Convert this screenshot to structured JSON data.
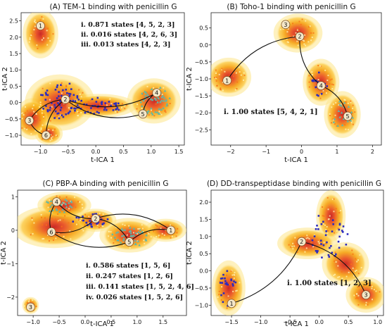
{
  "colors": {
    "blob_outer": "#fde68a",
    "blob_mid": "#f59e0b",
    "blob_inner": "#e8491d",
    "blob_core": "#c81e1e",
    "blue_points": "#2b2bbf",
    "teal_points": "#5fb8a8",
    "arrow": "#111111",
    "node_fill": "#f4e7c8"
  },
  "chart_data": [
    {
      "id": "A",
      "type": "scatter",
      "title": "(A) TEM-1 binding with penicillin G",
      "xlabel": "t-ICA 1",
      "ylabel": "t-ICA 2",
      "xlim": [
        -1.35,
        1.6
      ],
      "ylim": [
        -1.3,
        2.75
      ],
      "xticks": [
        -1.0,
        -0.5,
        0.0,
        0.5,
        1.0,
        1.5
      ],
      "xtick_labels": [
        "−1.0",
        "−0.5",
        "0.0",
        "0.5",
        "1.0",
        "1.5"
      ],
      "yticks": [
        -1.0,
        -0.5,
        0.0,
        0.5,
        1.0,
        1.5,
        2.0,
        2.5
      ],
      "ytick_labels": [
        "−1.0",
        "−0.5",
        "0.0",
        "0.5",
        "1.0",
        "1.5",
        "2.0",
        "2.5"
      ],
      "annotations": [
        "i.   0.871 states [4, 5, 2, 3]",
        "ii.  0.016 states [4, 2, 6, 3]",
        "iii. 0.013 states [4, 2, 3]"
      ],
      "states": [
        {
          "label": "1",
          "x": -1.0,
          "y": 2.35
        },
        {
          "label": "2",
          "x": -0.55,
          "y": 0.1
        },
        {
          "label": "3",
          "x": -1.2,
          "y": -0.55
        },
        {
          "label": "4",
          "x": 1.1,
          "y": 0.3
        },
        {
          "label": "5",
          "x": 0.85,
          "y": -0.35
        },
        {
          "label": "6",
          "x": -0.9,
          "y": -1.0
        }
      ],
      "transitions": [
        [
          4,
          5
        ],
        [
          5,
          2
        ],
        [
          2,
          3
        ],
        [
          4,
          2
        ],
        [
          2,
          6
        ],
        [
          6,
          3
        ]
      ],
      "densities": [
        {
          "x": -1.0,
          "y": 2.1,
          "rx": 0.28,
          "ry": 0.65
        },
        {
          "x": -0.65,
          "y": 0.0,
          "rx": 0.55,
          "ry": 0.75
        },
        {
          "x": -1.15,
          "y": -0.5,
          "rx": 0.28,
          "ry": 0.55
        },
        {
          "x": -0.85,
          "y": -0.95,
          "rx": 0.22,
          "ry": 0.3
        },
        {
          "x": 0.05,
          "y": -0.1,
          "rx": 0.6,
          "ry": 0.32
        },
        {
          "x": 1.05,
          "y": 0.05,
          "rx": 0.42,
          "ry": 0.6
        }
      ],
      "blue_regions": [
        {
          "x": -0.65,
          "y": 0.1,
          "rx": 0.35,
          "ry": 0.6,
          "n": 60
        },
        {
          "x": 0.0,
          "y": -0.1,
          "rx": 0.5,
          "ry": 0.25,
          "n": 45
        }
      ],
      "teal_regions": [
        {
          "x": 1.05,
          "y": 0.05,
          "rx": 0.3,
          "ry": 0.45,
          "n": 55
        }
      ]
    },
    {
      "id": "B",
      "type": "scatter",
      "title": "(B) Toho-1 binding with penicillin G",
      "xlabel": "t-ICA 1",
      "ylabel": "t-ICA 2",
      "xlim": [
        -2.55,
        2.25
      ],
      "ylim": [
        -2.95,
        0.95
      ],
      "xticks": [
        -2,
        -1,
        0,
        1,
        2
      ],
      "xtick_labels": [
        "−2",
        "−1",
        "0",
        "1",
        "2"
      ],
      "yticks": [
        -2.5,
        -2.0,
        -1.5,
        -1.0,
        -0.5,
        0.0,
        0.5
      ],
      "ytick_labels": [
        "−2.5",
        "−2.0",
        "−1.5",
        "−1.0",
        "−0.5",
        "0.0",
        "0.5"
      ],
      "annotations": [
        "i. 1.00 states [5, 4, 2, 1]"
      ],
      "states": [
        {
          "label": "1",
          "x": -2.1,
          "y": -1.05
        },
        {
          "label": "2",
          "x": -0.05,
          "y": 0.25
        },
        {
          "label": "3",
          "x": -0.45,
          "y": 0.6
        },
        {
          "label": "4",
          "x": 0.55,
          "y": -1.2
        },
        {
          "label": "5",
          "x": 1.3,
          "y": -2.1
        }
      ],
      "transitions": [
        [
          5,
          4
        ],
        [
          4,
          2
        ],
        [
          2,
          1
        ]
      ],
      "densities": [
        {
          "x": -2.05,
          "y": -0.95,
          "rx": 0.55,
          "ry": 0.5
        },
        {
          "x": -0.1,
          "y": 0.35,
          "rx": 0.6,
          "ry": 0.5
        },
        {
          "x": 0.55,
          "y": -1.1,
          "rx": 0.45,
          "ry": 0.6
        },
        {
          "x": 1.15,
          "y": -2.05,
          "rx": 0.45,
          "ry": 0.6
        }
      ],
      "blue_regions": [
        {
          "x": 0.5,
          "y": -1.15,
          "rx": 0.25,
          "ry": 0.35,
          "n": 18
        }
      ],
      "teal_regions": [
        {
          "x": 1.15,
          "y": -2.05,
          "rx": 0.3,
          "ry": 0.45,
          "n": 22
        }
      ]
    },
    {
      "id": "C",
      "type": "scatter",
      "title": "(C) PBP-A binding with penicillin G",
      "xlabel": "t-ICA 1",
      "ylabel": "t-ICA 2",
      "xlim": [
        -1.3,
        1.95
      ],
      "ylim": [
        -2.55,
        1.2
      ],
      "xticks": [
        -1.0,
        -0.5,
        0.0,
        0.5,
        1.0,
        1.5
      ],
      "xtick_labels": [
        "−1.0",
        "−0.5",
        "0.0",
        "0.5",
        "1.0",
        "1.5"
      ],
      "yticks": [
        -2,
        -1,
        0,
        1
      ],
      "ytick_labels": [
        "−2",
        "−1",
        "0",
        "1"
      ],
      "annotations": [
        "i.    0.586 states [1, 5, 6]",
        "ii.   0.247 states [1, 2, 6]",
        "iii.  0.141 states [1, 5, 2, 4, 6]",
        "iv.  0.026 states [1, 5, 2, 6]"
      ],
      "states": [
        {
          "label": "1",
          "x": 1.65,
          "y": 0.0
        },
        {
          "label": "2",
          "x": 0.2,
          "y": 0.35
        },
        {
          "label": "3",
          "x": -1.05,
          "y": -2.3
        },
        {
          "label": "4",
          "x": -0.55,
          "y": 0.85
        },
        {
          "label": "5",
          "x": 0.85,
          "y": -0.35
        },
        {
          "label": "6",
          "x": -0.65,
          "y": -0.05
        }
      ],
      "transitions": [
        [
          1,
          5
        ],
        [
          5,
          6
        ],
        [
          1,
          2
        ],
        [
          2,
          6
        ],
        [
          5,
          2
        ],
        [
          2,
          4
        ],
        [
          4,
          6
        ]
      ],
      "densities": [
        {
          "x": -0.6,
          "y": 0.1,
          "rx": 0.7,
          "ry": 0.55
        },
        {
          "x": -0.4,
          "y": 0.75,
          "rx": 0.45,
          "ry": 0.35
        },
        {
          "x": 0.2,
          "y": 0.3,
          "rx": 0.35,
          "ry": 0.3
        },
        {
          "x": 0.85,
          "y": -0.15,
          "rx": 0.5,
          "ry": 0.45
        },
        {
          "x": 1.55,
          "y": 0.0,
          "rx": 0.35,
          "ry": 0.3
        },
        {
          "x": -1.05,
          "y": -2.25,
          "rx": 0.14,
          "ry": 0.22
        }
      ],
      "blue_regions": [
        {
          "x": 0.1,
          "y": 0.3,
          "rx": 0.35,
          "ry": 0.22,
          "n": 30
        }
      ],
      "teal_regions": [
        {
          "x": -0.5,
          "y": 0.75,
          "rx": 0.3,
          "ry": 0.22,
          "n": 30
        },
        {
          "x": 0.85,
          "y": -0.2,
          "rx": 0.35,
          "ry": 0.3,
          "n": 40
        }
      ]
    },
    {
      "id": "D",
      "type": "scatter",
      "title": "(D) DD-transpeptidase binding with penicillin G",
      "xlabel": "t-ICA 1",
      "ylabel": "t-ICA 2",
      "xlim": [
        -1.85,
        1.1
      ],
      "ylim": [
        -1.3,
        2.35
      ],
      "xticks": [
        -1.5,
        -1.0,
        -0.5,
        0.0,
        0.5,
        1.0
      ],
      "xtick_labels": [
        "−1.5",
        "−1.0",
        "−0.5",
        "0.0",
        "0.5",
        "1.0"
      ],
      "yticks": [
        -1.0,
        -0.5,
        0.0,
        0.5,
        1.0,
        1.5,
        2.0
      ],
      "ytick_labels": [
        "−1.0",
        "−0.5",
        "0.0",
        "0.5",
        "1.0",
        "1.5",
        "2.0"
      ],
      "annotations": [
        "i. 1.00 states [1, 2, 3]"
      ],
      "states": [
        {
          "label": "1",
          "x": -1.5,
          "y": -0.95
        },
        {
          "label": "2",
          "x": -0.3,
          "y": 0.85
        },
        {
          "label": "3",
          "x": 0.8,
          "y": -0.7
        }
      ],
      "transitions": [
        [
          1,
          2
        ],
        [
          2,
          3
        ]
      ],
      "densities": [
        {
          "x": -1.55,
          "y": -0.5,
          "rx": 0.25,
          "ry": 0.7
        },
        {
          "x": -0.2,
          "y": 0.8,
          "rx": 0.45,
          "ry": 0.4
        },
        {
          "x": 0.2,
          "y": 1.6,
          "rx": 0.22,
          "ry": 0.65
        },
        {
          "x": 0.45,
          "y": 0.2,
          "rx": 0.35,
          "ry": 0.55
        },
        {
          "x": 0.8,
          "y": -0.7,
          "rx": 0.3,
          "ry": 0.45
        }
      ],
      "blue_regions": [
        {
          "x": -1.55,
          "y": -0.5,
          "rx": 0.15,
          "ry": 0.55,
          "n": 22
        },
        {
          "x": 0.15,
          "y": 1.0,
          "rx": 0.35,
          "ry": 0.7,
          "n": 40
        }
      ],
      "teal_regions": []
    }
  ]
}
